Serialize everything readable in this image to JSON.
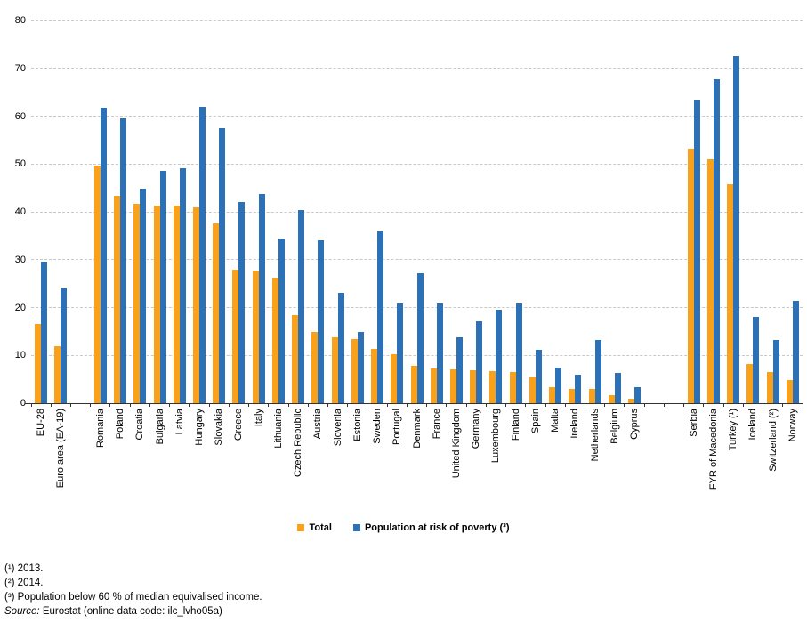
{
  "chart_data": {
    "type": "bar",
    "title": "",
    "categories": [
      "EU-28",
      "Euro area (EA-19)",
      "Romania",
      "Poland",
      "Croatia",
      "Bulgaria",
      "Latvia",
      "Hungary",
      "Slovakia",
      "Greece",
      "Italy",
      "Lithuania",
      "Czech Republic",
      "Austria",
      "Slovenia",
      "Estonia",
      "Sweden",
      "Portugal",
      "Denmark",
      "France",
      "United Kingdom",
      "Germany",
      "Luxembourg",
      "Finland",
      "Spain",
      "Malta",
      "Ireland",
      "Netherlands",
      "Belgium",
      "Cyprus",
      "Serbia",
      "FYR of Macedonia",
      "Turkey (¹)",
      "Iceland",
      "Switzerland (²)",
      "Norway"
    ],
    "series": [
      {
        "name": "Total",
        "color": "#F9A11B",
        "values": [
          16.5,
          11.9,
          49.6,
          43.3,
          41.6,
          41.3,
          41.3,
          41.0,
          37.6,
          27.9,
          27.8,
          26.2,
          18.5,
          14.9,
          13.7,
          13.4,
          11.4,
          10.2,
          7.9,
          7.3,
          7.0,
          6.9,
          6.7,
          6.5,
          5.4,
          3.3,
          3.0,
          2.9,
          1.6,
          1.0,
          53.3,
          50.9,
          45.7,
          8.1,
          6.6,
          4.9
        ]
      },
      {
        "name": "Population at risk of poverty (³)",
        "color": "#2C71B5",
        "values": [
          29.5,
          24.0,
          61.7,
          59.5,
          44.9,
          48.5,
          49.2,
          61.9,
          57.4,
          42.0,
          43.8,
          34.5,
          40.4,
          34.0,
          23.1,
          14.9,
          36.0,
          20.9,
          27.2,
          20.9,
          13.8,
          17.1,
          19.6,
          20.9,
          11.2,
          7.5,
          5.9,
          13.2,
          6.4,
          3.4,
          63.5,
          67.8,
          72.5,
          18.1,
          13.2,
          21.4
        ]
      }
    ],
    "gaps_after": [
      {
        "after_index": 1,
        "slots": 1
      },
      {
        "after_index": 29,
        "slots": 2
      }
    ],
    "y_axis": {
      "min": 0,
      "max": 80,
      "step": 10,
      "tick_labels": [
        "0",
        "10",
        "20",
        "30",
        "40",
        "50",
        "60",
        "70",
        "80"
      ]
    },
    "ylim": [
      0,
      80
    ],
    "xlabel": "",
    "ylabel": "",
    "grid": "horizontal-dashed",
    "legend_position": "bottom-center",
    "colors": {
      "grid": "#C9C9C9",
      "axis": "#333333"
    }
  },
  "footnotes": {
    "line1": "(¹) 2013.",
    "line2": "(²) 2014.",
    "line3": "(³) Population below 60 % of median equivalised income.",
    "source_label": "Source:",
    "source_text": " Eurostat (online data code: ilc_lvho05a)"
  }
}
